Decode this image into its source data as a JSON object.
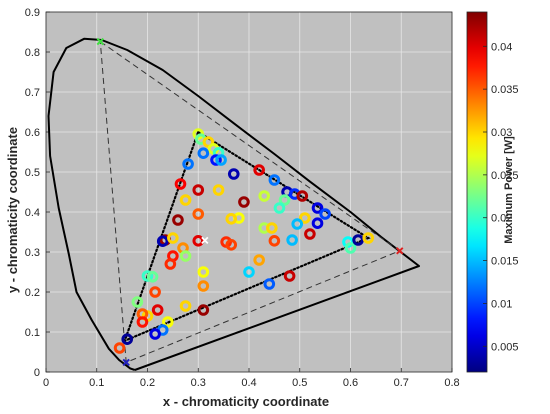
{
  "chart_data": {
    "type": "scatter",
    "xlabel": "x - chromaticity coordinate",
    "ylabel": "y - chromaticity coordinate",
    "xlim": [
      0,
      0.8
    ],
    "ylim": [
      0,
      0.9
    ],
    "xticks": [
      "0",
      "0.1",
      "0.2",
      "0.3",
      "0.4",
      "0.5",
      "0.6",
      "0.7",
      "0.8"
    ],
    "yticks": [
      "0",
      "0.1",
      "0.2",
      "0.3",
      "0.4",
      "0.5",
      "0.6",
      "0.7",
      "0.8",
      "0.9"
    ],
    "grid": true,
    "background_color": "#c0c0c0",
    "colorbar": {
      "label": "Maximum Power [W]",
      "range": [
        0.002,
        0.044
      ],
      "ticks": [
        "0.005",
        "0.01",
        "0.015",
        "0.02",
        "0.025",
        "0.03",
        "0.035",
        "0.04"
      ],
      "tick_values": [
        0.005,
        0.01,
        0.015,
        0.02,
        0.025,
        0.03,
        0.035,
        0.04
      ],
      "colormap": "jet"
    },
    "spectral_locus": [
      [
        0.175,
        0.005
      ],
      [
        0.166,
        0.009
      ],
      [
        0.144,
        0.03
      ],
      [
        0.124,
        0.058
      ],
      [
        0.09,
        0.13
      ],
      [
        0.06,
        0.2
      ],
      [
        0.045,
        0.295
      ],
      [
        0.025,
        0.41
      ],
      [
        0.008,
        0.54
      ],
      [
        0.005,
        0.64
      ],
      [
        0.015,
        0.75
      ],
      [
        0.04,
        0.81
      ],
      [
        0.075,
        0.833
      ],
      [
        0.11,
        0.83
      ],
      [
        0.16,
        0.805
      ],
      [
        0.23,
        0.755
      ],
      [
        0.3,
        0.69
      ],
      [
        0.375,
        0.617
      ],
      [
        0.45,
        0.545
      ],
      [
        0.52,
        0.476
      ],
      [
        0.6,
        0.4
      ],
      [
        0.66,
        0.338
      ],
      [
        0.735,
        0.265
      ],
      [
        0.175,
        0.005
      ]
    ],
    "gamut_triangle": [
      [
        0.107,
        0.826
      ],
      [
        0.697,
        0.303
      ],
      [
        0.158,
        0.024
      ]
    ],
    "primaries": [
      {
        "x": 0.107,
        "y": 0.826,
        "color": "#40e040"
      },
      {
        "x": 0.697,
        "y": 0.303,
        "color": "#e02020"
      },
      {
        "x": 0.158,
        "y": 0.024,
        "color": "#2020c0"
      }
    ],
    "achieved_gamut": [
      [
        0.3,
        0.6
      ],
      [
        0.635,
        0.335
      ],
      [
        0.155,
        0.078
      ]
    ],
    "white_point": {
      "x": 0.313,
      "y": 0.329,
      "color": "#ffffff"
    },
    "points": [
      {
        "x": 0.3,
        "y": 0.595,
        "p": 0.027
      },
      {
        "x": 0.305,
        "y": 0.582,
        "p": 0.022
      },
      {
        "x": 0.32,
        "y": 0.575,
        "p": 0.03
      },
      {
        "x": 0.33,
        "y": 0.558,
        "p": 0.027
      },
      {
        "x": 0.34,
        "y": 0.548,
        "p": 0.02
      },
      {
        "x": 0.31,
        "y": 0.547,
        "p": 0.012
      },
      {
        "x": 0.335,
        "y": 0.53,
        "p": 0.008
      },
      {
        "x": 0.28,
        "y": 0.52,
        "p": 0.012
      },
      {
        "x": 0.265,
        "y": 0.47,
        "p": 0.039
      },
      {
        "x": 0.37,
        "y": 0.495,
        "p": 0.004
      },
      {
        "x": 0.275,
        "y": 0.43,
        "p": 0.03
      },
      {
        "x": 0.42,
        "y": 0.505,
        "p": 0.04
      },
      {
        "x": 0.3,
        "y": 0.455,
        "p": 0.041
      },
      {
        "x": 0.34,
        "y": 0.455,
        "p": 0.03
      },
      {
        "x": 0.45,
        "y": 0.48,
        "p": 0.012
      },
      {
        "x": 0.475,
        "y": 0.45,
        "p": 0.004
      },
      {
        "x": 0.49,
        "y": 0.445,
        "p": 0.009
      },
      {
        "x": 0.505,
        "y": 0.44,
        "p": 0.042
      },
      {
        "x": 0.43,
        "y": 0.44,
        "p": 0.026
      },
      {
        "x": 0.47,
        "y": 0.43,
        "p": 0.022
      },
      {
        "x": 0.46,
        "y": 0.41,
        "p": 0.02
      },
      {
        "x": 0.39,
        "y": 0.425,
        "p": 0.043
      },
      {
        "x": 0.535,
        "y": 0.41,
        "p": 0.006
      },
      {
        "x": 0.55,
        "y": 0.395,
        "p": 0.01
      },
      {
        "x": 0.51,
        "y": 0.385,
        "p": 0.03
      },
      {
        "x": 0.535,
        "y": 0.372,
        "p": 0.006
      },
      {
        "x": 0.495,
        "y": 0.37,
        "p": 0.015
      },
      {
        "x": 0.38,
        "y": 0.385,
        "p": 0.028
      },
      {
        "x": 0.365,
        "y": 0.383,
        "p": 0.03
      },
      {
        "x": 0.3,
        "y": 0.395,
        "p": 0.035
      },
      {
        "x": 0.26,
        "y": 0.38,
        "p": 0.043
      },
      {
        "x": 0.43,
        "y": 0.36,
        "p": 0.025
      },
      {
        "x": 0.445,
        "y": 0.36,
        "p": 0.03
      },
      {
        "x": 0.45,
        "y": 0.328,
        "p": 0.036
      },
      {
        "x": 0.485,
        "y": 0.33,
        "p": 0.015
      },
      {
        "x": 0.52,
        "y": 0.345,
        "p": 0.041
      },
      {
        "x": 0.235,
        "y": 0.33,
        "p": 0.043
      },
      {
        "x": 0.23,
        "y": 0.327,
        "p": 0.004
      },
      {
        "x": 0.25,
        "y": 0.335,
        "p": 0.03
      },
      {
        "x": 0.3,
        "y": 0.328,
        "p": 0.04
      },
      {
        "x": 0.355,
        "y": 0.325,
        "p": 0.037
      },
      {
        "x": 0.365,
        "y": 0.318,
        "p": 0.036
      },
      {
        "x": 0.27,
        "y": 0.31,
        "p": 0.033
      },
      {
        "x": 0.275,
        "y": 0.29,
        "p": 0.024
      },
      {
        "x": 0.25,
        "y": 0.29,
        "p": 0.038
      },
      {
        "x": 0.245,
        "y": 0.27,
        "p": 0.037
      },
      {
        "x": 0.2,
        "y": 0.24,
        "p": 0.02
      },
      {
        "x": 0.21,
        "y": 0.238,
        "p": 0.022
      },
      {
        "x": 0.215,
        "y": 0.2,
        "p": 0.036
      },
      {
        "x": 0.18,
        "y": 0.175,
        "p": 0.023
      },
      {
        "x": 0.2,
        "y": 0.14,
        "p": 0.03
      },
      {
        "x": 0.22,
        "y": 0.155,
        "p": 0.04
      },
      {
        "x": 0.19,
        "y": 0.145,
        "p": 0.035
      },
      {
        "x": 0.19,
        "y": 0.125,
        "p": 0.038
      },
      {
        "x": 0.275,
        "y": 0.165,
        "p": 0.03
      },
      {
        "x": 0.31,
        "y": 0.155,
        "p": 0.043
      },
      {
        "x": 0.31,
        "y": 0.215,
        "p": 0.033
      },
      {
        "x": 0.31,
        "y": 0.25,
        "p": 0.028
      },
      {
        "x": 0.4,
        "y": 0.25,
        "p": 0.016
      },
      {
        "x": 0.44,
        "y": 0.22,
        "p": 0.011
      },
      {
        "x": 0.48,
        "y": 0.24,
        "p": 0.041
      },
      {
        "x": 0.42,
        "y": 0.28,
        "p": 0.032
      },
      {
        "x": 0.24,
        "y": 0.125,
        "p": 0.028
      },
      {
        "x": 0.23,
        "y": 0.105,
        "p": 0.012
      },
      {
        "x": 0.215,
        "y": 0.095,
        "p": 0.006
      },
      {
        "x": 0.16,
        "y": 0.082,
        "p": 0.003
      },
      {
        "x": 0.145,
        "y": 0.06,
        "p": 0.036
      },
      {
        "x": 0.595,
        "y": 0.325,
        "p": 0.018
      },
      {
        "x": 0.6,
        "y": 0.31,
        "p": 0.021
      },
      {
        "x": 0.615,
        "y": 0.33,
        "p": 0.003
      },
      {
        "x": 0.635,
        "y": 0.335,
        "p": 0.03
      },
      {
        "x": 0.345,
        "y": 0.53,
        "p": 0.014
      }
    ]
  }
}
